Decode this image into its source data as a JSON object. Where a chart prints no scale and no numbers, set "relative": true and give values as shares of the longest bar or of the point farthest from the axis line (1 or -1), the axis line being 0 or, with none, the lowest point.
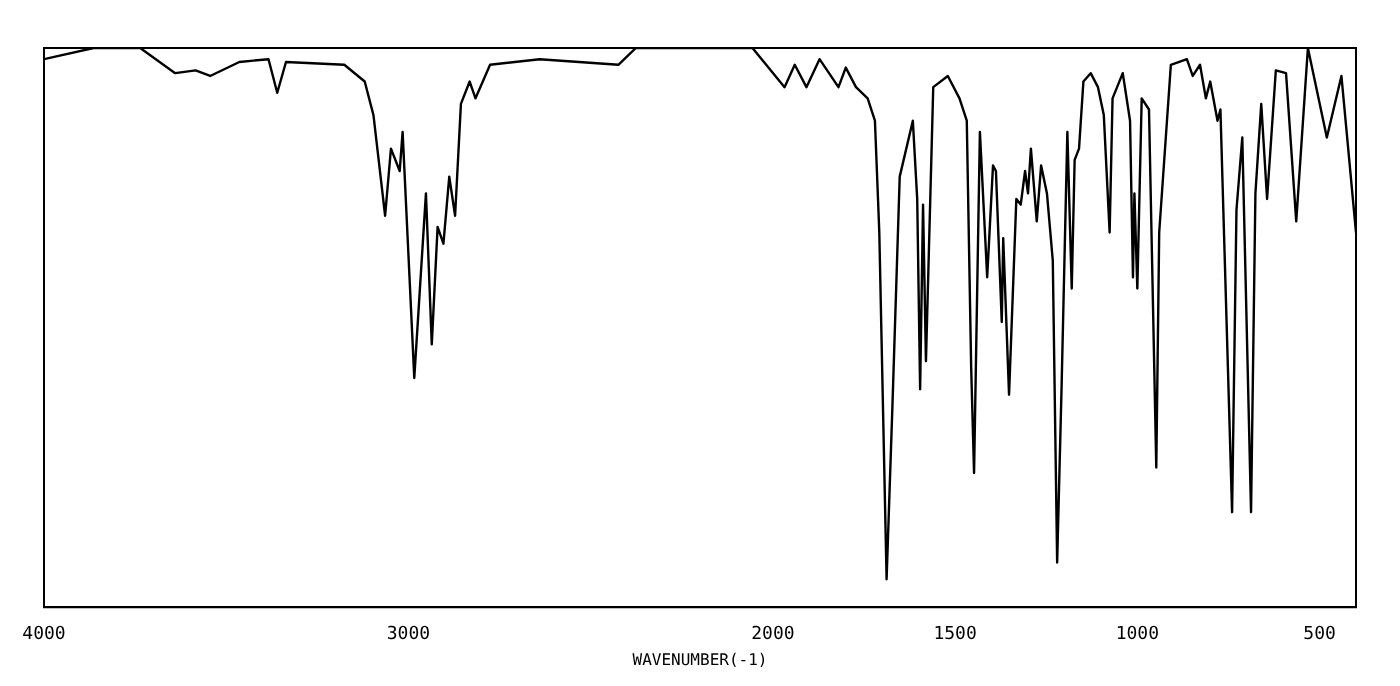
{
  "chart_data": {
    "type": "line",
    "xlabel": "WAVENUMBER(-1)",
    "relative": true,
    "xlim": [
      4000,
      400
    ],
    "xticks": [
      4000,
      3000,
      2000,
      1500,
      1000,
      500
    ],
    "marker": "none",
    "legend": false,
    "series": [
      {
        "color": "#000000",
        "x": [
          4000,
          3864,
          3736,
          3640,
          3584,
          3544,
          3464,
          3384,
          3360,
          3336,
          3176,
          3120,
          3096,
          3080,
          3064,
          3048,
          3024,
          3016,
          2984,
          2952,
          2936,
          2920,
          2904,
          2888,
          2872,
          2856,
          2832,
          2816,
          2776,
          2640,
          2424,
          2376,
          2056,
          1968,
          1940,
          1908,
          1872,
          1820,
          1800,
          1772,
          1740,
          1720,
          1708,
          1688,
          1672,
          1652,
          1616,
          1604,
          1596,
          1588,
          1580,
          1560,
          1520,
          1488,
          1468,
          1456,
          1448,
          1432,
          1412,
          1396,
          1388,
          1372,
          1368,
          1352,
          1332,
          1320,
          1308,
          1300,
          1292,
          1276,
          1264,
          1248,
          1232,
          1220,
          1208,
          1192,
          1180,
          1172,
          1160,
          1148,
          1128,
          1108,
          1092,
          1076,
          1068,
          1040,
          1020,
          1012,
          1008,
          1000,
          988,
          968,
          948,
          940,
          908,
          864,
          848,
          828,
          812,
          800,
          780,
          772,
          740,
          728,
          712,
          688,
          676,
          660,
          644,
          620,
          592,
          564,
          532,
          480,
          440,
          400
        ],
        "values": [
          0.98,
          1,
          1,
          0.955,
          0.96,
          0.95,
          0.975,
          0.98,
          0.92,
          0.975,
          0.97,
          0.94,
          0.88,
          0.79,
          0.7,
          0.82,
          0.78,
          0.85,
          0.41,
          0.74,
          0.47,
          0.68,
          0.65,
          0.77,
          0.7,
          0.9,
          0.94,
          0.91,
          0.97,
          0.98,
          0.97,
          1,
          1,
          0.93,
          0.97,
          0.93,
          0.98,
          0.93,
          0.965,
          0.93,
          0.91,
          0.87,
          0.67,
          0.05,
          0.36,
          0.77,
          0.87,
          0.73,
          0.39,
          0.72,
          0.44,
          0.93,
          0.95,
          0.91,
          0.87,
          0.43,
          0.24,
          0.85,
          0.59,
          0.79,
          0.78,
          0.51,
          0.66,
          0.38,
          0.73,
          0.72,
          0.78,
          0.74,
          0.82,
          0.69,
          0.79,
          0.74,
          0.62,
          0.08,
          0.39,
          0.85,
          0.57,
          0.8,
          0.82,
          0.94,
          0.955,
          0.93,
          0.88,
          0.67,
          0.91,
          0.955,
          0.87,
          0.59,
          0.74,
          0.57,
          0.91,
          0.89,
          0.25,
          0.67,
          0.97,
          0.98,
          0.95,
          0.97,
          0.91,
          0.94,
          0.87,
          0.89,
          0.17,
          0.71,
          0.84,
          0.17,
          0.74,
          0.9,
          0.73,
          0.96,
          0.955,
          0.69,
          1,
          0.84,
          0.95,
          0.67
        ]
      }
    ]
  }
}
